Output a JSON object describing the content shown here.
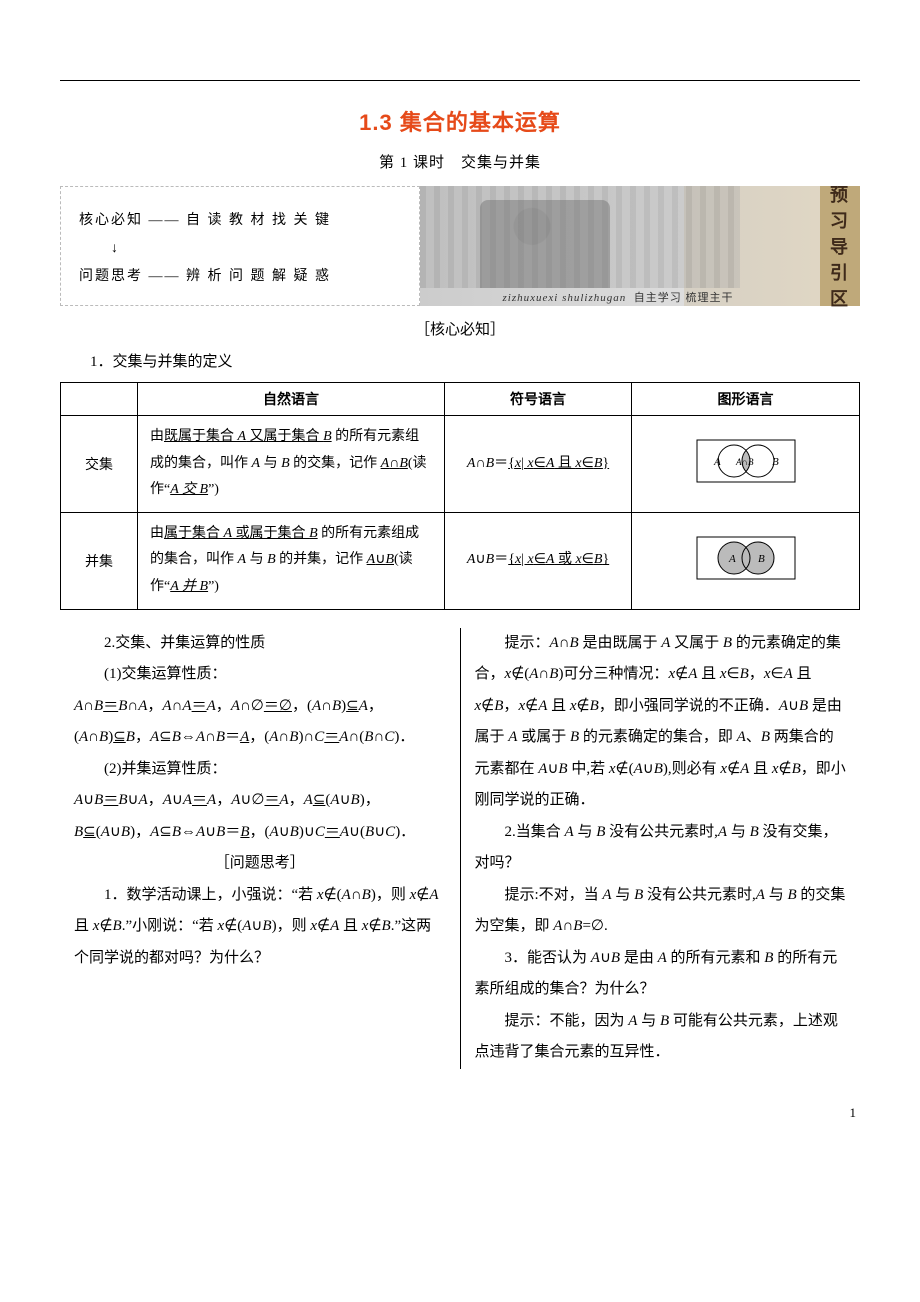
{
  "page": {
    "title": "1.3 集合的基本运算",
    "subtitle": "第 1 课时　交集与并集",
    "page_number": "1"
  },
  "colors": {
    "title_color": "#e64a19",
    "text_color": "#000000",
    "rule_color": "#000000",
    "banner_tab_bg": "#bfa97a",
    "banner_tab_fg": "#3f2a1a",
    "dashed_border": "#bbbbbb"
  },
  "banner": {
    "left_line1": "核心必知 —— 自 读 教 材 找 关 键",
    "left_arrow": "↓",
    "left_line2": "问题思考 —— 辨 析 问 题 解 疑 惑",
    "tab_chars": [
      "预",
      "习",
      "导",
      "引",
      "区"
    ],
    "caption_py": "zizhuxuexi  shulizhugan",
    "caption_cn": "自主学习  梳理主干"
  },
  "core_label": "［核心必知］",
  "section1_intro": "1．交集与并集的定义",
  "table": {
    "headers": [
      "",
      "自然语言",
      "符号语言",
      "图形语言"
    ],
    "rows": [
      {
        "name": "交集",
        "natural": "由<span class='u'>既属于集合 <span class='i'>A</span> 又属于集合 <span class='i'>B</span></span> 的所有元素组成的集合，叫作 <span class='i'>A</span> 与 <span class='i'>B</span> 的交集，记作 <span class='u'><span class='i'>A</span>∩<span class='i'>B</span></span>(读作“<span class='u i'>A 交 B</span>”)",
        "symbol": "<span class='i'>A</span>∩<span class='i'>B</span>＝<span class='u'>{<span class='i'>x</span>| <span class='i'>x</span>∈<span class='i'>A</span> 且 <span class='i'>x</span>∈<span class='i'>B</span>}</span>",
        "venn": "intersection"
      },
      {
        "name": "并集",
        "natural": "由<span class='u'>属于集合 <span class='i'>A</span> 或属于集合 <span class='i'>B</span></span> 的所有元素组成的集合，叫作 <span class='i'>A</span> 与 <span class='i'>B</span> 的并集，记作 <span class='u'><span class='i'>A</span>∪<span class='i'>B</span></span>(读作“<span class='u i'>A 并 B</span>”)",
        "symbol": "<span class='i'>A</span>∪<span class='i'>B</span>＝<span class='u'>{<span class='i'>x</span>| <span class='i'>x</span>∈<span class='i'>A</span> 或 <span class='i'>x</span>∈<span class='i'>B</span>}</span>",
        "venn": "union"
      }
    ]
  },
  "left_col": {
    "p1": "2.交集、并集运算的性质",
    "p2": "(1)交集运算性质：",
    "p3": "<span class='i'>A</span>∩<span class='i'>B</span><span class='u'>＝</span><span class='i'>B</span>∩<span class='i'>A</span>，<span class='i'>A</span>∩<span class='i'>A</span><span class='u'>＝</span><span class='i'>A</span>，<span class='i'>A</span>∩∅<span class='u'>＝∅</span>，(<span class='i'>A</span>∩<span class='i'>B</span>)<span class='u'>⊆</span><span class='i'>A</span>，(<span class='i'>A</span>∩<span class='i'>B</span>)<span class='u'>⊆</span><span class='i'>B</span>，<span class='i'>A</span>⊆<span class='i'>B</span>⇔<span class='i'>A</span>∩<span class='i'>B</span>＝<span class='u'><span class='i'>A</span></span>，(<span class='i'>A</span>∩<span class='i'>B</span>)∩<span class='i'>C</span><span class='u'>＝</span><span class='i'>A</span>∩(<span class='i'>B</span>∩<span class='i'>C</span>)．",
    "p4": "(2)并集运算性质：",
    "p5": "<span class='i'>A</span>∪<span class='i'>B</span><span class='u'>＝</span><span class='i'>B</span>∪<span class='i'>A</span>，<span class='i'>A</span>∪<span class='i'>A</span><span class='u'>＝</span><span class='i'>A</span>，<span class='i'>A</span>∪∅<span class='u'>＝</span><span class='i'>A</span>，<span class='i'>A</span><span class='u'>⊆</span>(<span class='i'>A</span>∪<span class='i'>B</span>)，<span class='i'>B</span><span class='u'>⊆</span>(<span class='i'>A</span>∪<span class='i'>B</span>)，<span class='i'>A</span>⊆<span class='i'>B</span>⇔<span class='i'>A</span>∪<span class='i'>B</span>＝<span class='u'><span class='i'>B</span></span>，(<span class='i'>A</span>∪<span class='i'>B</span>)∪<span class='i'>C</span><span class='u'>＝</span><span class='i'>A</span>∪(<span class='i'>B</span>∪<span class='i'>C</span>)．",
    "q_label": "［问题思考］",
    "p6": "1．数学活动课上，小强说：“若 <span class='i'>x</span>∉(<span class='i'>A</span>∩<span class='i'>B</span>)，则 <span class='i'>x</span>∉<span class='i'>A</span> 且 <span class='i'>x</span>∉<span class='i'>B</span>.”小刚说：“若 <span class='i'>x</span>∉(<span class='i'>A</span>∪<span class='i'>B</span>)，则 <span class='i'>x</span>∉<span class='i'>A</span> 且 <span class='i'>x</span>∉<span class='i'>B</span>.”这两个同学说的都对吗？为什么？"
  },
  "right_col": {
    "p1": "提示：<span class='i'>A</span>∩<span class='i'>B</span> 是由既属于 <span class='i'>A</span> 又属于 <span class='i'>B</span> 的元素确定的集合，<span class='i'>x</span>∉(<span class='i'>A</span>∩<span class='i'>B</span>)可分三种情况：<span class='i'>x</span>∉<span class='i'>A</span> 且 <span class='i'>x</span>∈<span class='i'>B</span>，<span class='i'>x</span>∈<span class='i'>A</span> 且 <span class='i'>x</span>∉<span class='i'>B</span>，<span class='i'>x</span>∉<span class='i'>A</span> 且 <span class='i'>x</span>∉<span class='i'>B</span>，即小强同学说的不正确．<span class='i'>A</span>∪<span class='i'>B</span> 是由属于 <span class='i'>A</span> 或属于 <span class='i'>B</span> 的元素确定的集合，即 <span class='i'>A</span>、<span class='i'>B</span> 两集合的元素都在 <span class='i'>A</span>∪<span class='i'>B</span> 中,若 <span class='i'>x</span>∉(<span class='i'>A</span>∪<span class='i'>B</span>),则必有 <span class='i'>x</span>∉<span class='i'>A</span> 且 <span class='i'>x</span>∉<span class='i'>B</span>，即小刚同学说的正确．",
    "p2": "2.当集合 <span class='i'>A</span> 与 <span class='i'>B</span> 没有公共元素时,<span class='i'>A</span> 与 <span class='i'>B</span> 没有交集，对吗？",
    "p3": "提示:不对，当 <span class='i'>A</span> 与 <span class='i'>B</span> 没有公共元素时,<span class='i'>A</span> 与 <span class='i'>B</span> 的交集为空集，即 <span class='i'>A</span>∩<span class='i'>B</span>=∅.",
    "p4": "3．能否认为 <span class='i'>A</span>∪<span class='i'>B</span> 是由 <span class='i'>A</span> 的所有元素和 <span class='i'>B</span> 的所有元素所组成的集合？为什么？",
    "p5": "提示：不能，因为 <span class='i'>A</span> 与 <span class='i'>B</span> 可能有公共元素，上述观点违背了集合元素的互异性．"
  }
}
